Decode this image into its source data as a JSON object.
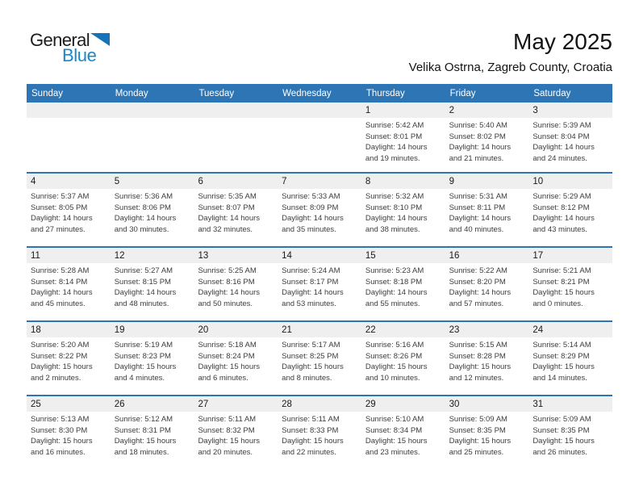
{
  "logo": {
    "word_top": "General",
    "word_bottom": "Blue"
  },
  "header": {
    "title": "May 2025",
    "subtitle": "Velika Ostrna, Zagreb County, Croatia"
  },
  "colors": {
    "header_blue": "#2e75b6",
    "divider_blue": "#2e74b5",
    "stripe_gray": "#efefef",
    "logo_triangle_blue": "#1573b9",
    "logo_text_blue": "#1b87cb",
    "detail_text": "#3c3c3c"
  },
  "labels": {
    "sunrise": "Sunrise:",
    "sunset": "Sunset:",
    "daylight": "Daylight:",
    "hours": "hours",
    "and": "and",
    "minutes": "minutes."
  },
  "weekdays": [
    "Sunday",
    "Monday",
    "Tuesday",
    "Wednesday",
    "Thursday",
    "Friday",
    "Saturday"
  ],
  "weeks": [
    [
      null,
      null,
      null,
      null,
      {
        "day": 1,
        "sunrise": "5:42 AM",
        "sunset": "8:01 PM",
        "daylight_h": 14,
        "daylight_m": 19
      },
      {
        "day": 2,
        "sunrise": "5:40 AM",
        "sunset": "8:02 PM",
        "daylight_h": 14,
        "daylight_m": 21
      },
      {
        "day": 3,
        "sunrise": "5:39 AM",
        "sunset": "8:04 PM",
        "daylight_h": 14,
        "daylight_m": 24
      }
    ],
    [
      {
        "day": 4,
        "sunrise": "5:37 AM",
        "sunset": "8:05 PM",
        "daylight_h": 14,
        "daylight_m": 27
      },
      {
        "day": 5,
        "sunrise": "5:36 AM",
        "sunset": "8:06 PM",
        "daylight_h": 14,
        "daylight_m": 30
      },
      {
        "day": 6,
        "sunrise": "5:35 AM",
        "sunset": "8:07 PM",
        "daylight_h": 14,
        "daylight_m": 32
      },
      {
        "day": 7,
        "sunrise": "5:33 AM",
        "sunset": "8:09 PM",
        "daylight_h": 14,
        "daylight_m": 35
      },
      {
        "day": 8,
        "sunrise": "5:32 AM",
        "sunset": "8:10 PM",
        "daylight_h": 14,
        "daylight_m": 38
      },
      {
        "day": 9,
        "sunrise": "5:31 AM",
        "sunset": "8:11 PM",
        "daylight_h": 14,
        "daylight_m": 40
      },
      {
        "day": 10,
        "sunrise": "5:29 AM",
        "sunset": "8:12 PM",
        "daylight_h": 14,
        "daylight_m": 43
      }
    ],
    [
      {
        "day": 11,
        "sunrise": "5:28 AM",
        "sunset": "8:14 PM",
        "daylight_h": 14,
        "daylight_m": 45
      },
      {
        "day": 12,
        "sunrise": "5:27 AM",
        "sunset": "8:15 PM",
        "daylight_h": 14,
        "daylight_m": 48
      },
      {
        "day": 13,
        "sunrise": "5:25 AM",
        "sunset": "8:16 PM",
        "daylight_h": 14,
        "daylight_m": 50
      },
      {
        "day": 14,
        "sunrise": "5:24 AM",
        "sunset": "8:17 PM",
        "daylight_h": 14,
        "daylight_m": 53
      },
      {
        "day": 15,
        "sunrise": "5:23 AM",
        "sunset": "8:18 PM",
        "daylight_h": 14,
        "daylight_m": 55
      },
      {
        "day": 16,
        "sunrise": "5:22 AM",
        "sunset": "8:20 PM",
        "daylight_h": 14,
        "daylight_m": 57
      },
      {
        "day": 17,
        "sunrise": "5:21 AM",
        "sunset": "8:21 PM",
        "daylight_h": 15,
        "daylight_m": 0
      }
    ],
    [
      {
        "day": 18,
        "sunrise": "5:20 AM",
        "sunset": "8:22 PM",
        "daylight_h": 15,
        "daylight_m": 2
      },
      {
        "day": 19,
        "sunrise": "5:19 AM",
        "sunset": "8:23 PM",
        "daylight_h": 15,
        "daylight_m": 4
      },
      {
        "day": 20,
        "sunrise": "5:18 AM",
        "sunset": "8:24 PM",
        "daylight_h": 15,
        "daylight_m": 6
      },
      {
        "day": 21,
        "sunrise": "5:17 AM",
        "sunset": "8:25 PM",
        "daylight_h": 15,
        "daylight_m": 8
      },
      {
        "day": 22,
        "sunrise": "5:16 AM",
        "sunset": "8:26 PM",
        "daylight_h": 15,
        "daylight_m": 10
      },
      {
        "day": 23,
        "sunrise": "5:15 AM",
        "sunset": "8:28 PM",
        "daylight_h": 15,
        "daylight_m": 12
      },
      {
        "day": 24,
        "sunrise": "5:14 AM",
        "sunset": "8:29 PM",
        "daylight_h": 15,
        "daylight_m": 14
      }
    ],
    [
      {
        "day": 25,
        "sunrise": "5:13 AM",
        "sunset": "8:30 PM",
        "daylight_h": 15,
        "daylight_m": 16
      },
      {
        "day": 26,
        "sunrise": "5:12 AM",
        "sunset": "8:31 PM",
        "daylight_h": 15,
        "daylight_m": 18
      },
      {
        "day": 27,
        "sunrise": "5:11 AM",
        "sunset": "8:32 PM",
        "daylight_h": 15,
        "daylight_m": 20
      },
      {
        "day": 28,
        "sunrise": "5:11 AM",
        "sunset": "8:33 PM",
        "daylight_h": 15,
        "daylight_m": 22
      },
      {
        "day": 29,
        "sunrise": "5:10 AM",
        "sunset": "8:34 PM",
        "daylight_h": 15,
        "daylight_m": 23
      },
      {
        "day": 30,
        "sunrise": "5:09 AM",
        "sunset": "8:35 PM",
        "daylight_h": 15,
        "daylight_m": 25
      },
      {
        "day": 31,
        "sunrise": "5:09 AM",
        "sunset": "8:35 PM",
        "daylight_h": 15,
        "daylight_m": 26
      }
    ]
  ]
}
